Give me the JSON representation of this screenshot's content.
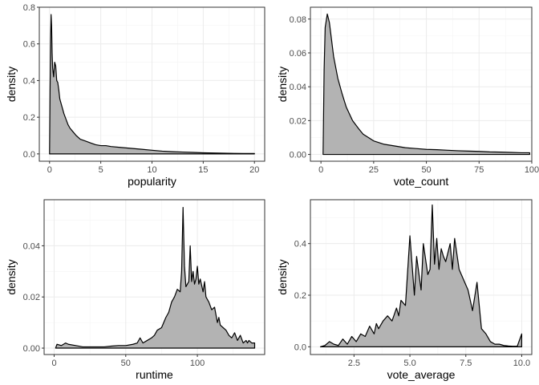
{
  "chart_data": [
    {
      "type": "area",
      "xlabel": "popularity",
      "ylabel": "density",
      "xlim": [
        -1,
        21
      ],
      "ylim": [
        -0.04,
        0.8
      ],
      "xticks": [
        0,
        5,
        10,
        15,
        20
      ],
      "yticks": [
        0.0,
        0.2,
        0.4,
        0.6,
        0.8
      ],
      "xtick_labels": [
        "0",
        "5",
        "10",
        "15",
        "20"
      ],
      "ytick_labels": [
        "0.0",
        "0.2",
        "0.4",
        "0.6",
        "0.8"
      ],
      "grid": true,
      "series": [
        {
          "x": [
            0,
            0.05,
            0.1,
            0.15,
            0.2,
            0.25,
            0.3,
            0.4,
            0.5,
            0.6,
            0.7,
            0.8,
            0.9,
            1.0,
            1.2,
            1.4,
            1.6,
            1.8,
            2.0,
            2.3,
            2.6,
            3.0,
            3.5,
            4.0,
            4.5,
            5.0,
            5.5,
            6.0,
            7.0,
            8.0,
            9.0,
            10.0,
            11.0,
            12.0,
            13.0,
            14.0,
            15.0,
            16.0,
            17.0,
            18.0,
            19.0,
            20.0
          ],
          "y": [
            0,
            0.35,
            0.62,
            0.76,
            0.7,
            0.55,
            0.47,
            0.42,
            0.5,
            0.48,
            0.4,
            0.39,
            0.35,
            0.3,
            0.26,
            0.22,
            0.19,
            0.16,
            0.14,
            0.12,
            0.1,
            0.08,
            0.07,
            0.06,
            0.05,
            0.045,
            0.045,
            0.04,
            0.035,
            0.03,
            0.025,
            0.02,
            0.015,
            0.012,
            0.01,
            0.008,
            0.006,
            0.005,
            0.004,
            0.003,
            0.002,
            0.002
          ]
        }
      ]
    },
    {
      "type": "area",
      "xlabel": "vote_count",
      "ylabel": "density",
      "xlim": [
        -5,
        100
      ],
      "ylim": [
        -0.004,
        0.087
      ],
      "xticks": [
        0,
        25,
        50,
        75,
        100
      ],
      "yticks": [
        0.0,
        0.02,
        0.04,
        0.06,
        0.08
      ],
      "xtick_labels": [
        "0",
        "25",
        "50",
        "75",
        "100"
      ],
      "ytick_labels": [
        "0.00",
        "0.02",
        "0.04",
        "0.06",
        "0.08"
      ],
      "grid": true,
      "series": [
        {
          "x": [
            1,
            1.5,
            2,
            3,
            4,
            5,
            6,
            8,
            10,
            12,
            15,
            18,
            20,
            25,
            30,
            35,
            40,
            45,
            50,
            55,
            60,
            65,
            70,
            75,
            80,
            85,
            90,
            95,
            99
          ],
          "y": [
            0,
            0.05,
            0.075,
            0.083,
            0.078,
            0.068,
            0.058,
            0.045,
            0.036,
            0.028,
            0.02,
            0.015,
            0.012,
            0.008,
            0.006,
            0.005,
            0.004,
            0.0035,
            0.003,
            0.0028,
            0.0025,
            0.0022,
            0.002,
            0.0018,
            0.0015,
            0.0014,
            0.0012,
            0.001,
            0.001
          ]
        }
      ]
    },
    {
      "type": "area",
      "xlabel": "runtime",
      "ylabel": "density",
      "xlim": [
        -7,
        147
      ],
      "ylim": [
        -0.0025,
        0.058
      ],
      "xticks": [
        0,
        50,
        100
      ],
      "yticks": [
        0.0,
        0.02,
        0.04
      ],
      "xtick_labels": [
        "0",
        "50",
        "100"
      ],
      "ytick_labels": [
        "0.00",
        "0.02",
        "0.04"
      ],
      "grid": true,
      "series": [
        {
          "x": [
            1,
            2,
            5,
            8,
            10,
            15,
            20,
            25,
            30,
            35,
            40,
            45,
            50,
            55,
            58,
            60,
            62,
            65,
            68,
            70,
            72,
            75,
            78,
            80,
            82,
            84,
            86,
            88,
            89,
            90,
            91,
            92,
            94,
            95,
            96,
            97,
            98,
            99,
            100,
            101,
            102,
            104,
            105,
            106,
            108,
            110,
            112,
            114,
            115,
            116,
            118,
            120,
            122,
            124,
            126,
            128,
            130,
            132,
            134,
            135,
            136,
            138,
            140
          ],
          "y": [
            0,
            0.0015,
            0.001,
            0.002,
            0.0015,
            0.001,
            0.0005,
            0.0005,
            0.0005,
            0.0005,
            0.0008,
            0.001,
            0.001,
            0.0015,
            0.002,
            0.004,
            0.002,
            0.003,
            0.004,
            0.005,
            0.007,
            0.008,
            0.012,
            0.014,
            0.018,
            0.02,
            0.023,
            0.022,
            0.03,
            0.055,
            0.032,
            0.024,
            0.026,
            0.04,
            0.026,
            0.03,
            0.025,
            0.027,
            0.032,
            0.025,
            0.027,
            0.022,
            0.026,
            0.02,
            0.018,
            0.015,
            0.016,
            0.01,
            0.012,
            0.009,
            0.008,
            0.007,
            0.005,
            0.004,
            0.006,
            0.003,
            0.005,
            0.002,
            0.003,
            0.002,
            0.003,
            0.002,
            0.002
          ]
        }
      ]
    },
    {
      "type": "area",
      "xlabel": "vote_average",
      "ylabel": "density",
      "xlim": [
        0.55,
        10.45
      ],
      "ylim": [
        -0.03,
        0.57
      ],
      "xticks": [
        2.5,
        5.0,
        7.5,
        10.0
      ],
      "yticks": [
        0.0,
        0.2,
        0.4
      ],
      "xtick_labels": [
        "2.5",
        "5.0",
        "7.5",
        "10.0"
      ],
      "ytick_labels": [
        "0.0",
        "0.2",
        "0.4"
      ],
      "grid": true,
      "series": [
        {
          "x": [
            1.0,
            1.2,
            1.4,
            1.6,
            1.8,
            2.0,
            2.2,
            2.4,
            2.6,
            2.8,
            3.0,
            3.2,
            3.4,
            3.5,
            3.6,
            3.8,
            4.0,
            4.2,
            4.4,
            4.5,
            4.6,
            4.8,
            5.0,
            5.2,
            5.3,
            5.5,
            5.6,
            5.8,
            5.9,
            6.0,
            6.1,
            6.2,
            6.3,
            6.4,
            6.5,
            6.6,
            6.8,
            6.9,
            7.0,
            7.2,
            7.4,
            7.6,
            7.8,
            8.0,
            8.2,
            8.4,
            8.6,
            8.8,
            9.0,
            9.2,
            9.4,
            9.6,
            9.8,
            10.0
          ],
          "y": [
            0,
            0.005,
            0.02,
            0.01,
            0.005,
            0.03,
            0.01,
            0.04,
            0.02,
            0.05,
            0.04,
            0.08,
            0.05,
            0.09,
            0.07,
            0.1,
            0.12,
            0.1,
            0.15,
            0.12,
            0.18,
            0.16,
            0.43,
            0.2,
            0.35,
            0.22,
            0.4,
            0.28,
            0.3,
            0.55,
            0.32,
            0.42,
            0.3,
            0.38,
            0.35,
            0.33,
            0.4,
            0.3,
            0.42,
            0.3,
            0.26,
            0.22,
            0.14,
            0.25,
            0.07,
            0.05,
            0.02,
            0.01,
            0.01,
            0.005,
            0.003,
            0.002,
            0.002,
            0.05
          ]
        }
      ]
    }
  ]
}
